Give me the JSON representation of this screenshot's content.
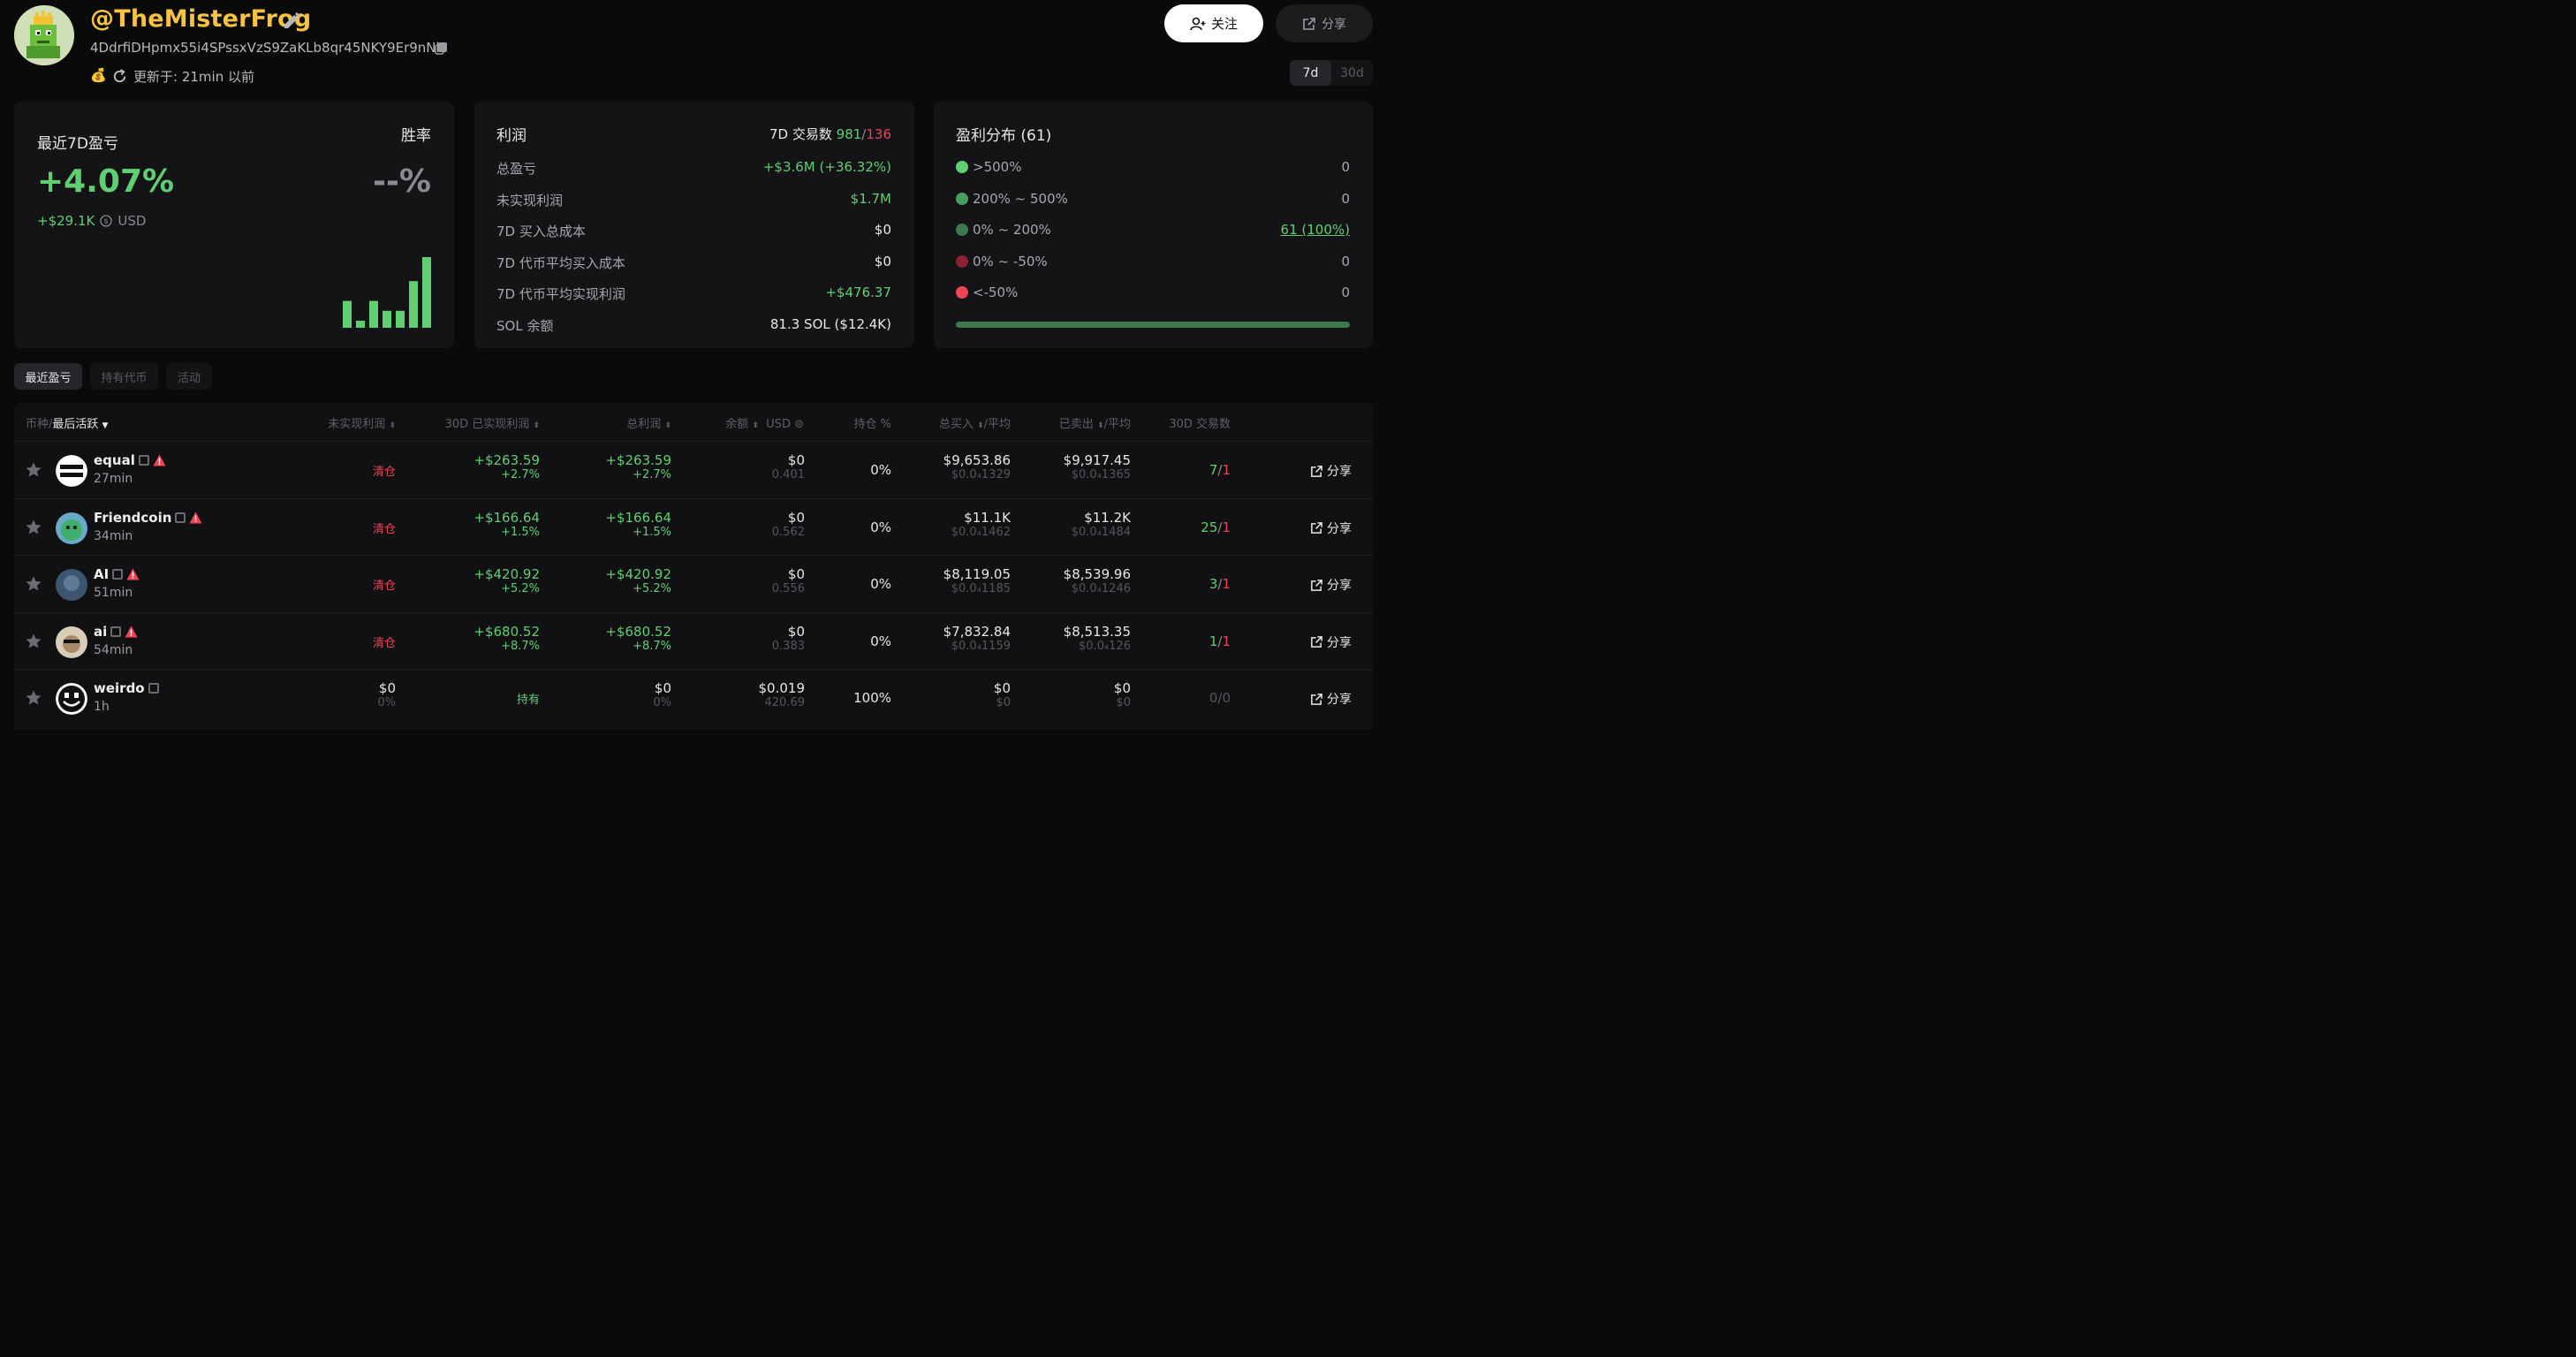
{
  "header": {
    "username": "@TheMisterFrog",
    "address": "4DdrfiDHpmx55i4SPssxVzS9ZaKLb8qr45NKY9Er9nNh",
    "updated": "更新于: 21min 以前",
    "follow_label": "关注",
    "share_label": "分享",
    "periods": [
      "7d",
      "30d"
    ],
    "active_period": "7d"
  },
  "pnl_card": {
    "title": "最近7D盈亏",
    "winrate_title": "胜率",
    "pnl_pct": "+4.07%",
    "winrate": "--%",
    "pnl_usd": "+$29.1K",
    "currency": "USD",
    "bars_relative": [
      0.38,
      0.1,
      0.38,
      0.24,
      0.24,
      0.66,
      1.0
    ]
  },
  "profit_card": {
    "title": "利润",
    "trades_label": "7D 交易数",
    "trades_win": "981",
    "trades_sep": "/",
    "trades_loss": "136",
    "rows": [
      {
        "label": "总盈亏",
        "value": "+$3.6M (+36.32%)",
        "tone": "green"
      },
      {
        "label": "未实现利润",
        "value": "$1.7M",
        "tone": "green"
      },
      {
        "label": "7D 买入总成本",
        "value": "$0",
        "tone": "white"
      },
      {
        "label": "7D 代币平均买入成本",
        "value": "$0",
        "tone": "white"
      },
      {
        "label": "7D 代币平均实现利润",
        "value": "+$476.37",
        "tone": "green"
      },
      {
        "label": "SOL 余额",
        "value": "81.3 SOL ($12.4K)",
        "tone": "white"
      }
    ]
  },
  "dist_card": {
    "title": "盈利分布 (61)",
    "rows": [
      {
        "label": ">500%",
        "value": "0",
        "color": "#5fcf72"
      },
      {
        "label": "200% ~ 500%",
        "value": "0",
        "color": "#4a9e5c"
      },
      {
        "label": "0% ~ 200%",
        "value": "61 (100%)",
        "color": "#3d7a4b"
      },
      {
        "label": "0% ~ -50%",
        "value": "0",
        "color": "#8a2331"
      },
      {
        "label": "<-50%",
        "value": "0",
        "color": "#ef4455"
      }
    ],
    "bar_fraction": 1.0
  },
  "tabs": [
    "最近盈亏",
    "持有代币",
    "活动"
  ],
  "table": {
    "headers": {
      "token": "币种/",
      "last_active": "最后活跃",
      "unrealized": "未实现利润",
      "realized": "30D 已实现利润",
      "total": "总利润",
      "balance": "余额",
      "usd": "USD",
      "position": "持仓 %",
      "bought": "总买入",
      "bought_avg": "/平均",
      "sold": "已卖出",
      "sold_avg": "/平均",
      "trades": "30D 交易数"
    },
    "share_label": "分享",
    "rows": [
      {
        "name": "equal",
        "time": "27min",
        "unrealized": "清仓",
        "unrealized_sub": "",
        "realized": "+$263.59",
        "realized_sub": "+2.7%",
        "total": "+$263.59",
        "total_sub": "+2.7%",
        "balance": "$0",
        "balance_sub": "0.401",
        "position": "0%",
        "bought": "$9,653.86",
        "bought_sub": "$0.0₄1329",
        "sold": "$9,917.45",
        "sold_sub": "$0.0₄1365",
        "tw": "7",
        "tl": "1",
        "warn": true
      },
      {
        "name": "Friendcoin",
        "time": "34min",
        "unrealized": "清仓",
        "unrealized_sub": "",
        "realized": "+$166.64",
        "realized_sub": "+1.5%",
        "total": "+$166.64",
        "total_sub": "+1.5%",
        "balance": "$0",
        "balance_sub": "0.562",
        "position": "0%",
        "bought": "$11.1K",
        "bought_sub": "$0.0₄1462",
        "sold": "$11.2K",
        "sold_sub": "$0.0₄1484",
        "tw": "25",
        "tl": "1",
        "warn": true
      },
      {
        "name": "AI",
        "time": "51min",
        "unrealized": "清仓",
        "unrealized_sub": "",
        "realized": "+$420.92",
        "realized_sub": "+5.2%",
        "total": "+$420.92",
        "total_sub": "+5.2%",
        "balance": "$0",
        "balance_sub": "0.556",
        "position": "0%",
        "bought": "$8,119.05",
        "bought_sub": "$0.0₄1185",
        "sold": "$8,539.96",
        "sold_sub": "$0.0₄1246",
        "tw": "3",
        "tl": "1",
        "warn": true
      },
      {
        "name": "ai",
        "time": "54min",
        "unrealized": "清仓",
        "unrealized_sub": "",
        "realized": "+$680.52",
        "realized_sub": "+8.7%",
        "total": "+$680.52",
        "total_sub": "+8.7%",
        "balance": "$0",
        "balance_sub": "0.383",
        "position": "0%",
        "bought": "$7,832.84",
        "bought_sub": "$0.0₄1159",
        "sold": "$8,513.35",
        "sold_sub": "$0.0₄126",
        "tw": "1",
        "tl": "1",
        "warn": true
      },
      {
        "name": "weirdo",
        "time": "1h",
        "unrealized": "$0",
        "unrealized_sub": "0%",
        "realized": "持有",
        "realized_sub": "",
        "total": "$0",
        "total_sub": "0%",
        "balance": "$0.019",
        "balance_sub": "420.69",
        "position": "100%",
        "bought": "$0",
        "bought_sub": "$0",
        "sold": "$0",
        "sold_sub": "$0",
        "tw": "0",
        "tl": "0",
        "warn": false
      }
    ]
  }
}
